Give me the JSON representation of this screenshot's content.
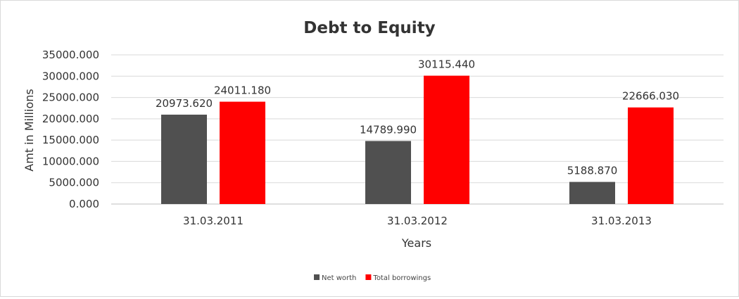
{
  "chart_data": {
    "type": "bar",
    "title": "Debt to Equity",
    "xlabel": "Years",
    "ylabel": "Amt in Millions",
    "categories": [
      "31.03.2011",
      "31.03.2012",
      "31.03.2013"
    ],
    "series": [
      {
        "name": "Net worth",
        "color": "#505050",
        "values": [
          20973.62,
          14789.99,
          5188.87
        ],
        "labels": [
          "20973.620",
          "14789.990",
          "5188.870"
        ]
      },
      {
        "name": "Total borrowings",
        "color": "#ff0000",
        "values": [
          24011.18,
          30115.44,
          22666.03
        ],
        "labels": [
          "24011.180",
          "30115.440",
          "22666.030"
        ]
      }
    ],
    "ylim": [
      0,
      35000
    ],
    "yticks": [
      "0.000",
      "5000.000",
      "10000.000",
      "15000.000",
      "20000.000",
      "25000.000",
      "30000.000",
      "35000.000"
    ],
    "grid": true,
    "legend": "bottom"
  }
}
